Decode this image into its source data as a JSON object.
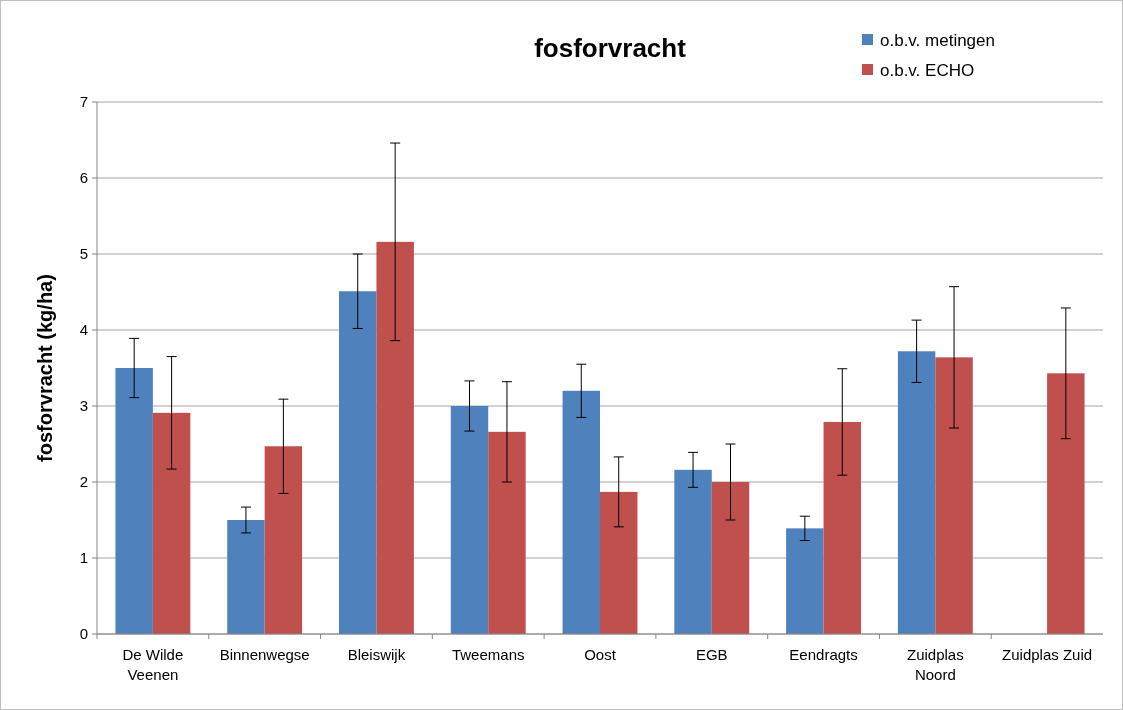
{
  "chart_data": {
    "type": "bar",
    "title": "fosforvracht",
    "ylabel": "fosforvracht  (kg/ha)",
    "categories": [
      "De Wilde\nVeenen",
      "Binnenwegse",
      "Bleiswijk",
      "Tweemans",
      "Oost",
      "EGB",
      "Eendragts",
      "Zuidplas\nNoord",
      "Zuidplas Zuid"
    ],
    "series": [
      {
        "name": "o.b.v. metingen",
        "color": "#4f81bd",
        "values": [
          3.5,
          1.5,
          4.51,
          3.0,
          3.2,
          2.16,
          1.39,
          3.72,
          null
        ],
        "errors": [
          0.39,
          0.17,
          0.49,
          0.33,
          0.35,
          0.23,
          0.16,
          0.41,
          null
        ]
      },
      {
        "name": "o.b.v. ECHO",
        "color": "#c0504d",
        "values": [
          2.91,
          2.47,
          5.16,
          2.66,
          1.87,
          2.0,
          2.79,
          3.64,
          3.43
        ],
        "errors": [
          0.74,
          0.62,
          1.3,
          0.66,
          0.46,
          0.5,
          0.7,
          0.93,
          0.86
        ]
      }
    ],
    "ylim": [
      0,
      7
    ],
    "yticks": [
      0,
      1,
      2,
      3,
      4,
      5,
      6,
      7
    ],
    "grid": "y",
    "legend": "top right"
  }
}
